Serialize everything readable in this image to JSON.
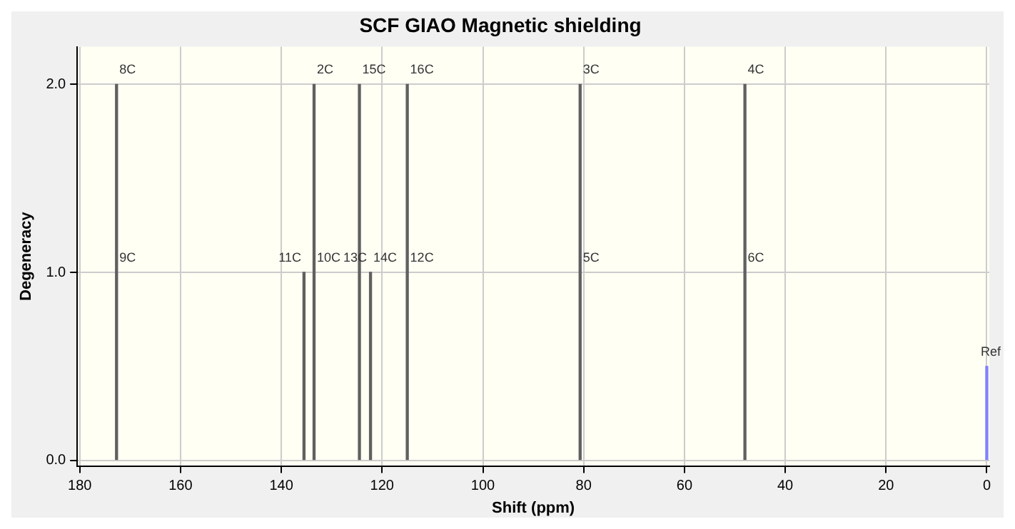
{
  "chart_data": {
    "type": "bar",
    "title": "SCF GIAO Magnetic shielding",
    "xlabel": "Shift (ppm)",
    "ylabel": "Degeneracy",
    "x": [
      172.7,
      135.5,
      133.5,
      124.5,
      122.3,
      115,
      80.7,
      48,
      0
    ],
    "values": [
      2,
      1,
      2,
      2,
      1,
      2,
      2,
      2,
      0.5
    ],
    "colors": [
      "#606060",
      "#606060",
      "#606060",
      "#606060",
      "#606060",
      "#606060",
      "#606060",
      "#606060",
      "#8080ff"
    ],
    "xlim": [
      180.5,
      -0.5
    ],
    "xticks": [
      180,
      160,
      140,
      120,
      100,
      80,
      60,
      40,
      20,
      0
    ],
    "ylim": [
      -0.03,
      2.2
    ],
    "yticks": [
      {
        "value": 0,
        "label": "0.0"
      },
      {
        "value": 1,
        "label": "1.0"
      },
      {
        "value": 2,
        "label": "2.0"
      }
    ],
    "grid": true,
    "legend": false,
    "annotations": [
      {
        "text": "8C",
        "x": 172.7,
        "y": 2
      },
      {
        "text": "9C",
        "x": 172.7,
        "y": 1
      },
      {
        "text": "2C",
        "x": 133.5,
        "y": 2
      },
      {
        "text": "11C",
        "x": 135.5,
        "y": 1
      },
      {
        "text": "10C",
        "x": 133.5,
        "y": 1
      },
      {
        "text": "15C",
        "x": 124.5,
        "y": 2
      },
      {
        "text": "13C",
        "x": 124.5,
        "y": 1
      },
      {
        "text": "14C",
        "x": 122.3,
        "y": 1
      },
      {
        "text": "16C",
        "x": 115,
        "y": 2
      },
      {
        "text": "12C",
        "x": 115,
        "y": 1
      },
      {
        "text": "3C",
        "x": 80.7,
        "y": 2
      },
      {
        "text": "5C",
        "x": 80.7,
        "y": 1
      },
      {
        "text": "4C",
        "x": 48,
        "y": 2
      },
      {
        "text": "6C",
        "x": 48,
        "y": 1
      },
      {
        "text": "Ref",
        "x": 0,
        "y": 0.5
      }
    ]
  }
}
